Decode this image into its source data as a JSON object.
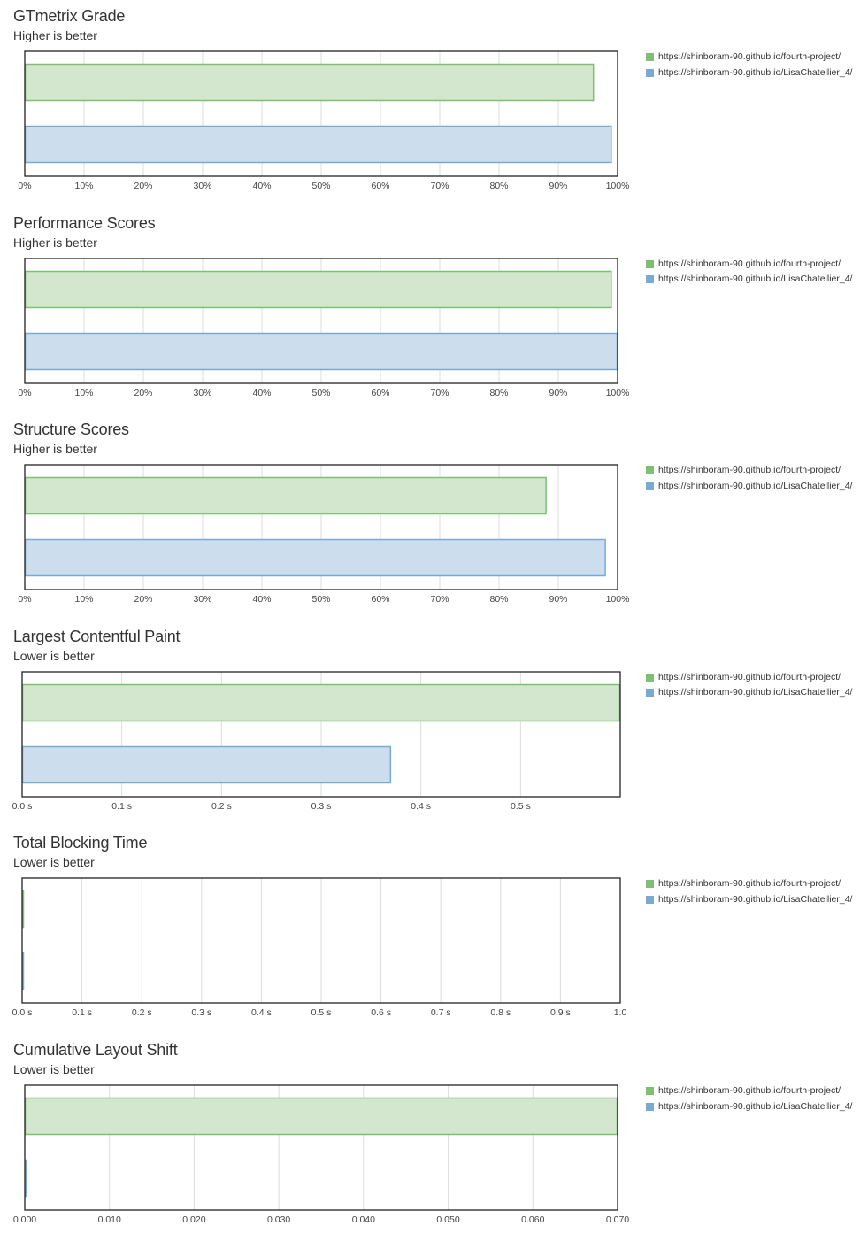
{
  "legend_series": [
    {
      "name": "https://shinboram-90.github.io/fourth-project/",
      "color": "#7fbf73",
      "fill": "#d2e7cd"
    },
    {
      "name": "https://shinboram-90.github.io/LisaChatellier_4/",
      "color": "#7aa9d2",
      "fill": "#ccdeed"
    }
  ],
  "chart_data": [
    {
      "type": "bar",
      "title": "GTmetrix Grade",
      "subtitle": "Higher is better",
      "categories": [
        "https://shinboram-90.github.io/fourth-project/",
        "https://shinboram-90.github.io/LisaChatellier_4/"
      ],
      "values": [
        96,
        99
      ],
      "xlim": [
        0,
        100
      ],
      "ticks": [
        0,
        10,
        20,
        30,
        40,
        50,
        60,
        70,
        80,
        90,
        100
      ],
      "tick_labels": [
        "0%",
        "10%",
        "20%",
        "30%",
        "40%",
        "50%",
        "60%",
        "70%",
        "80%",
        "90%",
        "100%"
      ],
      "grid": true,
      "legend_position": "right"
    },
    {
      "type": "bar",
      "title": "Performance Scores",
      "subtitle": "Higher is better",
      "categories": [
        "https://shinboram-90.github.io/fourth-project/",
        "https://shinboram-90.github.io/LisaChatellier_4/"
      ],
      "values": [
        99,
        100
      ],
      "xlim": [
        0,
        100
      ],
      "ticks": [
        0,
        10,
        20,
        30,
        40,
        50,
        60,
        70,
        80,
        90,
        100
      ],
      "tick_labels": [
        "0%",
        "10%",
        "20%",
        "30%",
        "40%",
        "50%",
        "60%",
        "70%",
        "80%",
        "90%",
        "100%"
      ],
      "grid": true,
      "legend_position": "right"
    },
    {
      "type": "bar",
      "title": "Structure Scores",
      "subtitle": "Higher is better",
      "categories": [
        "https://shinboram-90.github.io/fourth-project/",
        "https://shinboram-90.github.io/LisaChatellier_4/"
      ],
      "values": [
        88,
        98
      ],
      "xlim": [
        0,
        100
      ],
      "ticks": [
        0,
        10,
        20,
        30,
        40,
        50,
        60,
        70,
        80,
        90,
        100
      ],
      "tick_labels": [
        "0%",
        "10%",
        "20%",
        "30%",
        "40%",
        "50%",
        "60%",
        "70%",
        "80%",
        "90%",
        "100%"
      ],
      "grid": true,
      "legend_position": "right"
    },
    {
      "type": "bar",
      "title": "Largest Contentful Paint",
      "subtitle": "Lower is better",
      "categories": [
        "https://shinboram-90.github.io/fourth-project/",
        "https://shinboram-90.github.io/LisaChatellier_4/"
      ],
      "values": [
        0.6,
        0.37
      ],
      "xlim": [
        0,
        0.6
      ],
      "ticks": [
        0,
        0.1,
        0.2,
        0.3,
        0.4,
        0.5
      ],
      "tick_labels": [
        "0.0 s",
        "0.1 s",
        "0.2 s",
        "0.3 s",
        "0.4 s",
        "0.5 s"
      ],
      "grid": true,
      "legend_position": "right"
    },
    {
      "type": "bar",
      "title": "Total Blocking Time",
      "subtitle": "Lower is better",
      "categories": [
        "https://shinboram-90.github.io/fourth-project/",
        "https://shinboram-90.github.io/LisaChatellier_4/"
      ],
      "values": [
        0,
        0
      ],
      "xlim": [
        0,
        1.0
      ],
      "ticks": [
        0,
        0.1,
        0.2,
        0.3,
        0.4,
        0.5,
        0.6,
        0.7,
        0.8,
        0.9,
        1.0
      ],
      "tick_labels": [
        "0.0 s",
        "0.1 s",
        "0.2 s",
        "0.3 s",
        "0.4 s",
        "0.5 s",
        "0.6 s",
        "0.7 s",
        "0.8 s",
        "0.9 s",
        "1.0"
      ],
      "grid": true,
      "legend_position": "right"
    },
    {
      "type": "bar",
      "title": "Cumulative Layout Shift",
      "subtitle": "Lower is better",
      "categories": [
        "https://shinboram-90.github.io/fourth-project/",
        "https://shinboram-90.github.io/LisaChatellier_4/"
      ],
      "values": [
        0.07,
        0
      ],
      "xlim": [
        0,
        0.07
      ],
      "ticks": [
        0,
        0.01,
        0.02,
        0.03,
        0.04,
        0.05,
        0.06,
        0.07
      ],
      "tick_labels": [
        "0.000",
        "0.010",
        "0.020",
        "0.030",
        "0.040",
        "0.050",
        "0.060",
        "0.070"
      ],
      "grid": true,
      "legend_position": "right"
    }
  ]
}
